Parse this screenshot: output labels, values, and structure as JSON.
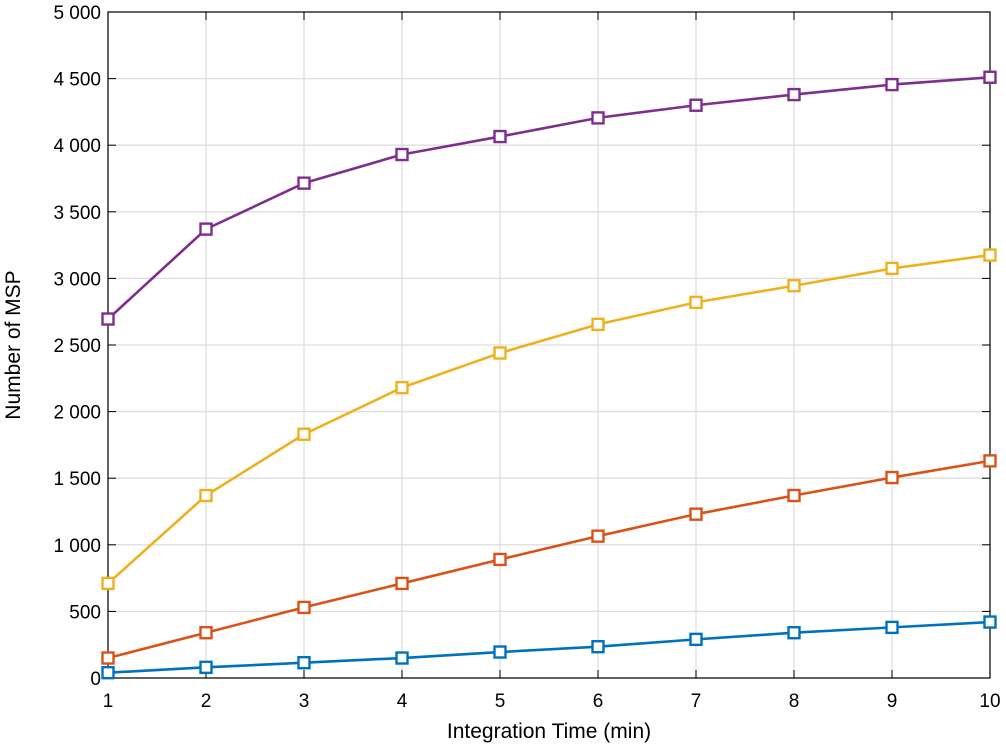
{
  "chart_data": {
    "type": "line",
    "title": "",
    "xlabel": "Integration Time (min)",
    "ylabel": "Number of MSP",
    "xlim": [
      1,
      10
    ],
    "ylim": [
      0,
      5000
    ],
    "grid": true,
    "x_ticks": [
      1,
      2,
      3,
      4,
      5,
      6,
      7,
      8,
      9,
      10
    ],
    "x_tick_labels": [
      "1",
      "2",
      "3",
      "4",
      "5",
      "6",
      "7",
      "8",
      "9",
      "10"
    ],
    "y_ticks": [
      0,
      500,
      1000,
      1500,
      2000,
      2500,
      3000,
      3500,
      4000,
      4500,
      5000
    ],
    "y_tick_labels": [
      "0",
      "500",
      "1 000",
      "1 500",
      "2 000",
      "2 500",
      "3 000",
      "3 500",
      "4 000",
      "4 500",
      "5 000"
    ],
    "x": [
      1,
      2,
      3,
      4,
      5,
      6,
      7,
      8,
      9,
      10
    ],
    "series": [
      {
        "color": "#0072BD",
        "marker": "square",
        "values": [
          40,
          80,
          115,
          150,
          195,
          235,
          290,
          340,
          380,
          420
        ]
      },
      {
        "color": "#D95319",
        "marker": "square",
        "values": [
          150,
          340,
          530,
          710,
          890,
          1065,
          1230,
          1370,
          1505,
          1630
        ]
      },
      {
        "color": "#EDB120",
        "marker": "square",
        "values": [
          710,
          1370,
          1830,
          2180,
          2440,
          2655,
          2820,
          2945,
          3075,
          3175
        ]
      },
      {
        "color": "#7E2F8E",
        "marker": "square",
        "values": [
          2695,
          3370,
          3715,
          3930,
          4065,
          4205,
          4300,
          4380,
          4455,
          4510
        ]
      }
    ]
  }
}
